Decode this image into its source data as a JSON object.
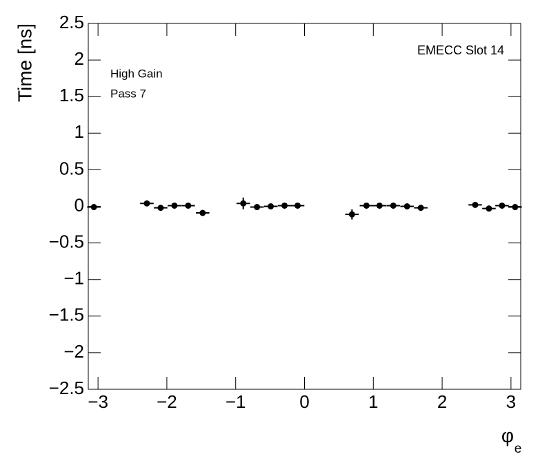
{
  "chart_data": {
    "type": "scatter",
    "y_label": "Time [ns]",
    "x_label": "φ",
    "x_label_sub": "e",
    "annotations": [
      "EMECC Slot 14",
      "High Gain",
      "Pass 7"
    ],
    "color": "#000000",
    "series": [
      {
        "name": null,
        "x": [
          -3.06,
          -2.29,
          -2.09,
          -1.89,
          -1.69,
          -1.48,
          -0.89,
          -0.69,
          -0.49,
          -0.29,
          -0.1,
          0.69,
          0.9,
          1.09,
          1.29,
          1.49,
          1.69,
          2.48,
          2.68,
          2.87,
          3.06
        ],
        "values": [
          -0.01,
          0.04,
          -0.02,
          0.01,
          0.01,
          -0.09,
          0.04,
          -0.01,
          0.0,
          0.01,
          0.01,
          -0.11,
          0.01,
          0.01,
          0.01,
          0.0,
          -0.02,
          0.02,
          -0.03,
          0.01,
          -0.01
        ],
        "errors": [
          0.03,
          0.02,
          0.02,
          0.02,
          0.02,
          0.02,
          0.08,
          0.02,
          0.02,
          0.02,
          0.03,
          0.07,
          0.02,
          0.02,
          0.02,
          0.02,
          0.02,
          0.02,
          0.02,
          0.02,
          0.02
        ],
        "x_errors": [
          0.098,
          0.098,
          0.098,
          0.098,
          0.098,
          0.098,
          0.098,
          0.098,
          0.098,
          0.098,
          0.098,
          0.098,
          0.098,
          0.098,
          0.098,
          0.098,
          0.098,
          0.098,
          0.098,
          0.098,
          0.098
        ]
      }
    ],
    "xlim": [
      -3.1416,
      3.1416
    ],
    "xticks": [
      {
        "value": -3,
        "label": "−3"
      },
      {
        "value": -2,
        "label": "−2"
      },
      {
        "value": -1,
        "label": "−1"
      },
      0,
      1,
      2,
      3
    ],
    "ylim": [
      -2.5,
      2.5
    ],
    "yticks": [
      {
        "value": -2.5,
        "label": "−2.5"
      },
      {
        "value": -2,
        "label": "−2"
      },
      {
        "value": -1.5,
        "label": "−1.5"
      },
      {
        "value": -1,
        "label": "−1"
      },
      {
        "value": -0.5,
        "label": "−0.5"
      },
      0,
      0.5,
      1,
      1.5,
      2,
      2.5
    ]
  }
}
